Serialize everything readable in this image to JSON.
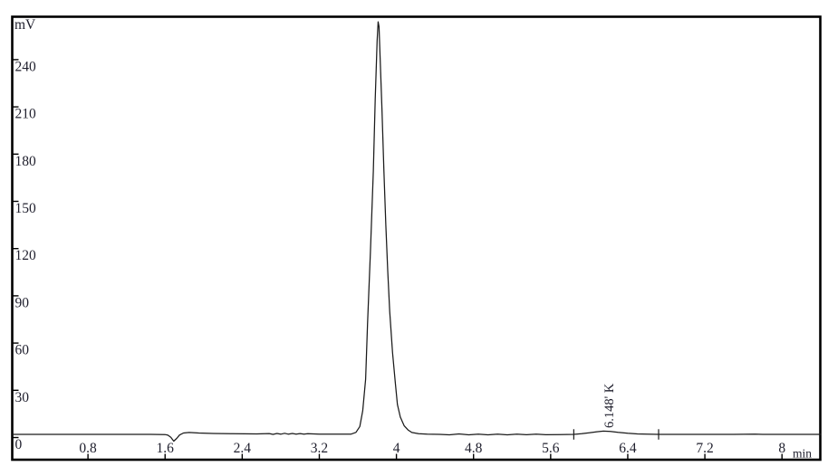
{
  "window": {
    "background": "#ffffff",
    "frame_color": "#000000"
  },
  "chart_data": {
    "type": "line",
    "title": "",
    "xlabel": "min",
    "ylabel": "mV",
    "grid": false,
    "legend": null,
    "xlim": [
      0,
      8.4
    ],
    "ylim": [
      0,
      268
    ],
    "line_color": "#1a1a1a",
    "text_color": "#20202e",
    "x_ticks": {
      "values": [
        0.8,
        1.6,
        2.4,
        3.2,
        4.0,
        4.8,
        5.6,
        6.4,
        7.2,
        8.0
      ],
      "labels": [
        "0.8",
        "1.6",
        "2.4",
        "3.2",
        "4",
        "4.8",
        "5.6",
        "6.4",
        "7.2",
        "8"
      ]
    },
    "y_ticks": {
      "values": [
        0,
        30,
        60,
        90,
        120,
        150,
        180,
        210,
        240
      ],
      "labels": [
        "0",
        "30",
        "60",
        "90",
        "120",
        "150",
        "180",
        "210",
        "240"
      ]
    },
    "peaks": [
      {
        "retention_time_min": 3.81,
        "height_mV": 264,
        "label": "",
        "annotation": ""
      },
      {
        "retention_time_min": 6.148,
        "height_mV": 4.1,
        "label": "K",
        "annotation": "6.148' K"
      }
    ],
    "integration_marks_min": [
      5.84,
      6.72
    ],
    "baseline_dip_min": 1.69,
    "trace_points": [
      [
        0.02,
        2.0
      ],
      [
        0.5,
        2.0
      ],
      [
        1.0,
        2.0
      ],
      [
        1.45,
        2.0
      ],
      [
        1.6,
        1.9
      ],
      [
        1.63,
        1.5
      ],
      [
        1.66,
        0.2
      ],
      [
        1.69,
        -2.3
      ],
      [
        1.72,
        -0.6
      ],
      [
        1.75,
        1.6
      ],
      [
        1.79,
        2.9
      ],
      [
        1.85,
        3.2
      ],
      [
        1.95,
        2.9
      ],
      [
        2.1,
        2.6
      ],
      [
        2.3,
        2.4
      ],
      [
        2.55,
        2.3
      ],
      [
        2.68,
        2.5
      ],
      [
        2.72,
        2.0
      ],
      [
        2.76,
        2.6
      ],
      [
        2.8,
        2.1
      ],
      [
        2.84,
        2.7
      ],
      [
        2.88,
        2.1
      ],
      [
        2.92,
        2.6
      ],
      [
        2.96,
        2.1
      ],
      [
        3.0,
        2.5
      ],
      [
        3.04,
        2.2
      ],
      [
        3.08,
        2.4
      ],
      [
        3.2,
        2.2
      ],
      [
        3.4,
        2.1
      ],
      [
        3.53,
        2.2
      ],
      [
        3.58,
        3.3
      ],
      [
        3.62,
        7.0
      ],
      [
        3.65,
        17
      ],
      [
        3.68,
        37
      ],
      [
        3.7,
        72
      ],
      [
        3.73,
        118
      ],
      [
        3.76,
        169
      ],
      [
        3.78,
        215
      ],
      [
        3.8,
        252
      ],
      [
        3.81,
        264
      ],
      [
        3.82,
        261
      ],
      [
        3.83,
        243
      ],
      [
        3.85,
        209
      ],
      [
        3.87,
        169
      ],
      [
        3.89,
        135
      ],
      [
        3.91,
        106
      ],
      [
        3.93,
        80
      ],
      [
        3.96,
        54
      ],
      [
        3.99,
        34
      ],
      [
        4.01,
        21
      ],
      [
        4.04,
        13
      ],
      [
        4.08,
        7.5
      ],
      [
        4.12,
        4.8
      ],
      [
        4.16,
        3.2
      ],
      [
        4.23,
        2.4
      ],
      [
        4.32,
        2.1
      ],
      [
        4.45,
        2.0
      ],
      [
        4.55,
        1.7
      ],
      [
        4.65,
        2.3
      ],
      [
        4.75,
        1.7
      ],
      [
        4.85,
        2.2
      ],
      [
        4.95,
        1.7
      ],
      [
        5.05,
        2.2
      ],
      [
        5.15,
        1.7
      ],
      [
        5.25,
        2.2
      ],
      [
        5.35,
        1.8
      ],
      [
        5.45,
        2.1
      ],
      [
        5.55,
        1.8
      ],
      [
        5.7,
        1.9
      ],
      [
        5.84,
        2.0
      ],
      [
        5.92,
        2.4
      ],
      [
        6.0,
        3.0
      ],
      [
        6.08,
        3.7
      ],
      [
        6.148,
        4.1
      ],
      [
        6.22,
        3.9
      ],
      [
        6.3,
        3.3
      ],
      [
        6.4,
        2.7
      ],
      [
        6.5,
        2.3
      ],
      [
        6.6,
        2.1
      ],
      [
        6.72,
        2.0
      ],
      [
        6.9,
        2.0
      ],
      [
        7.2,
        2.0
      ],
      [
        7.5,
        2.0
      ],
      [
        7.72,
        2.1
      ],
      [
        7.8,
        2.0
      ],
      [
        8.1,
        2.0
      ],
      [
        8.4,
        2.0
      ]
    ]
  }
}
